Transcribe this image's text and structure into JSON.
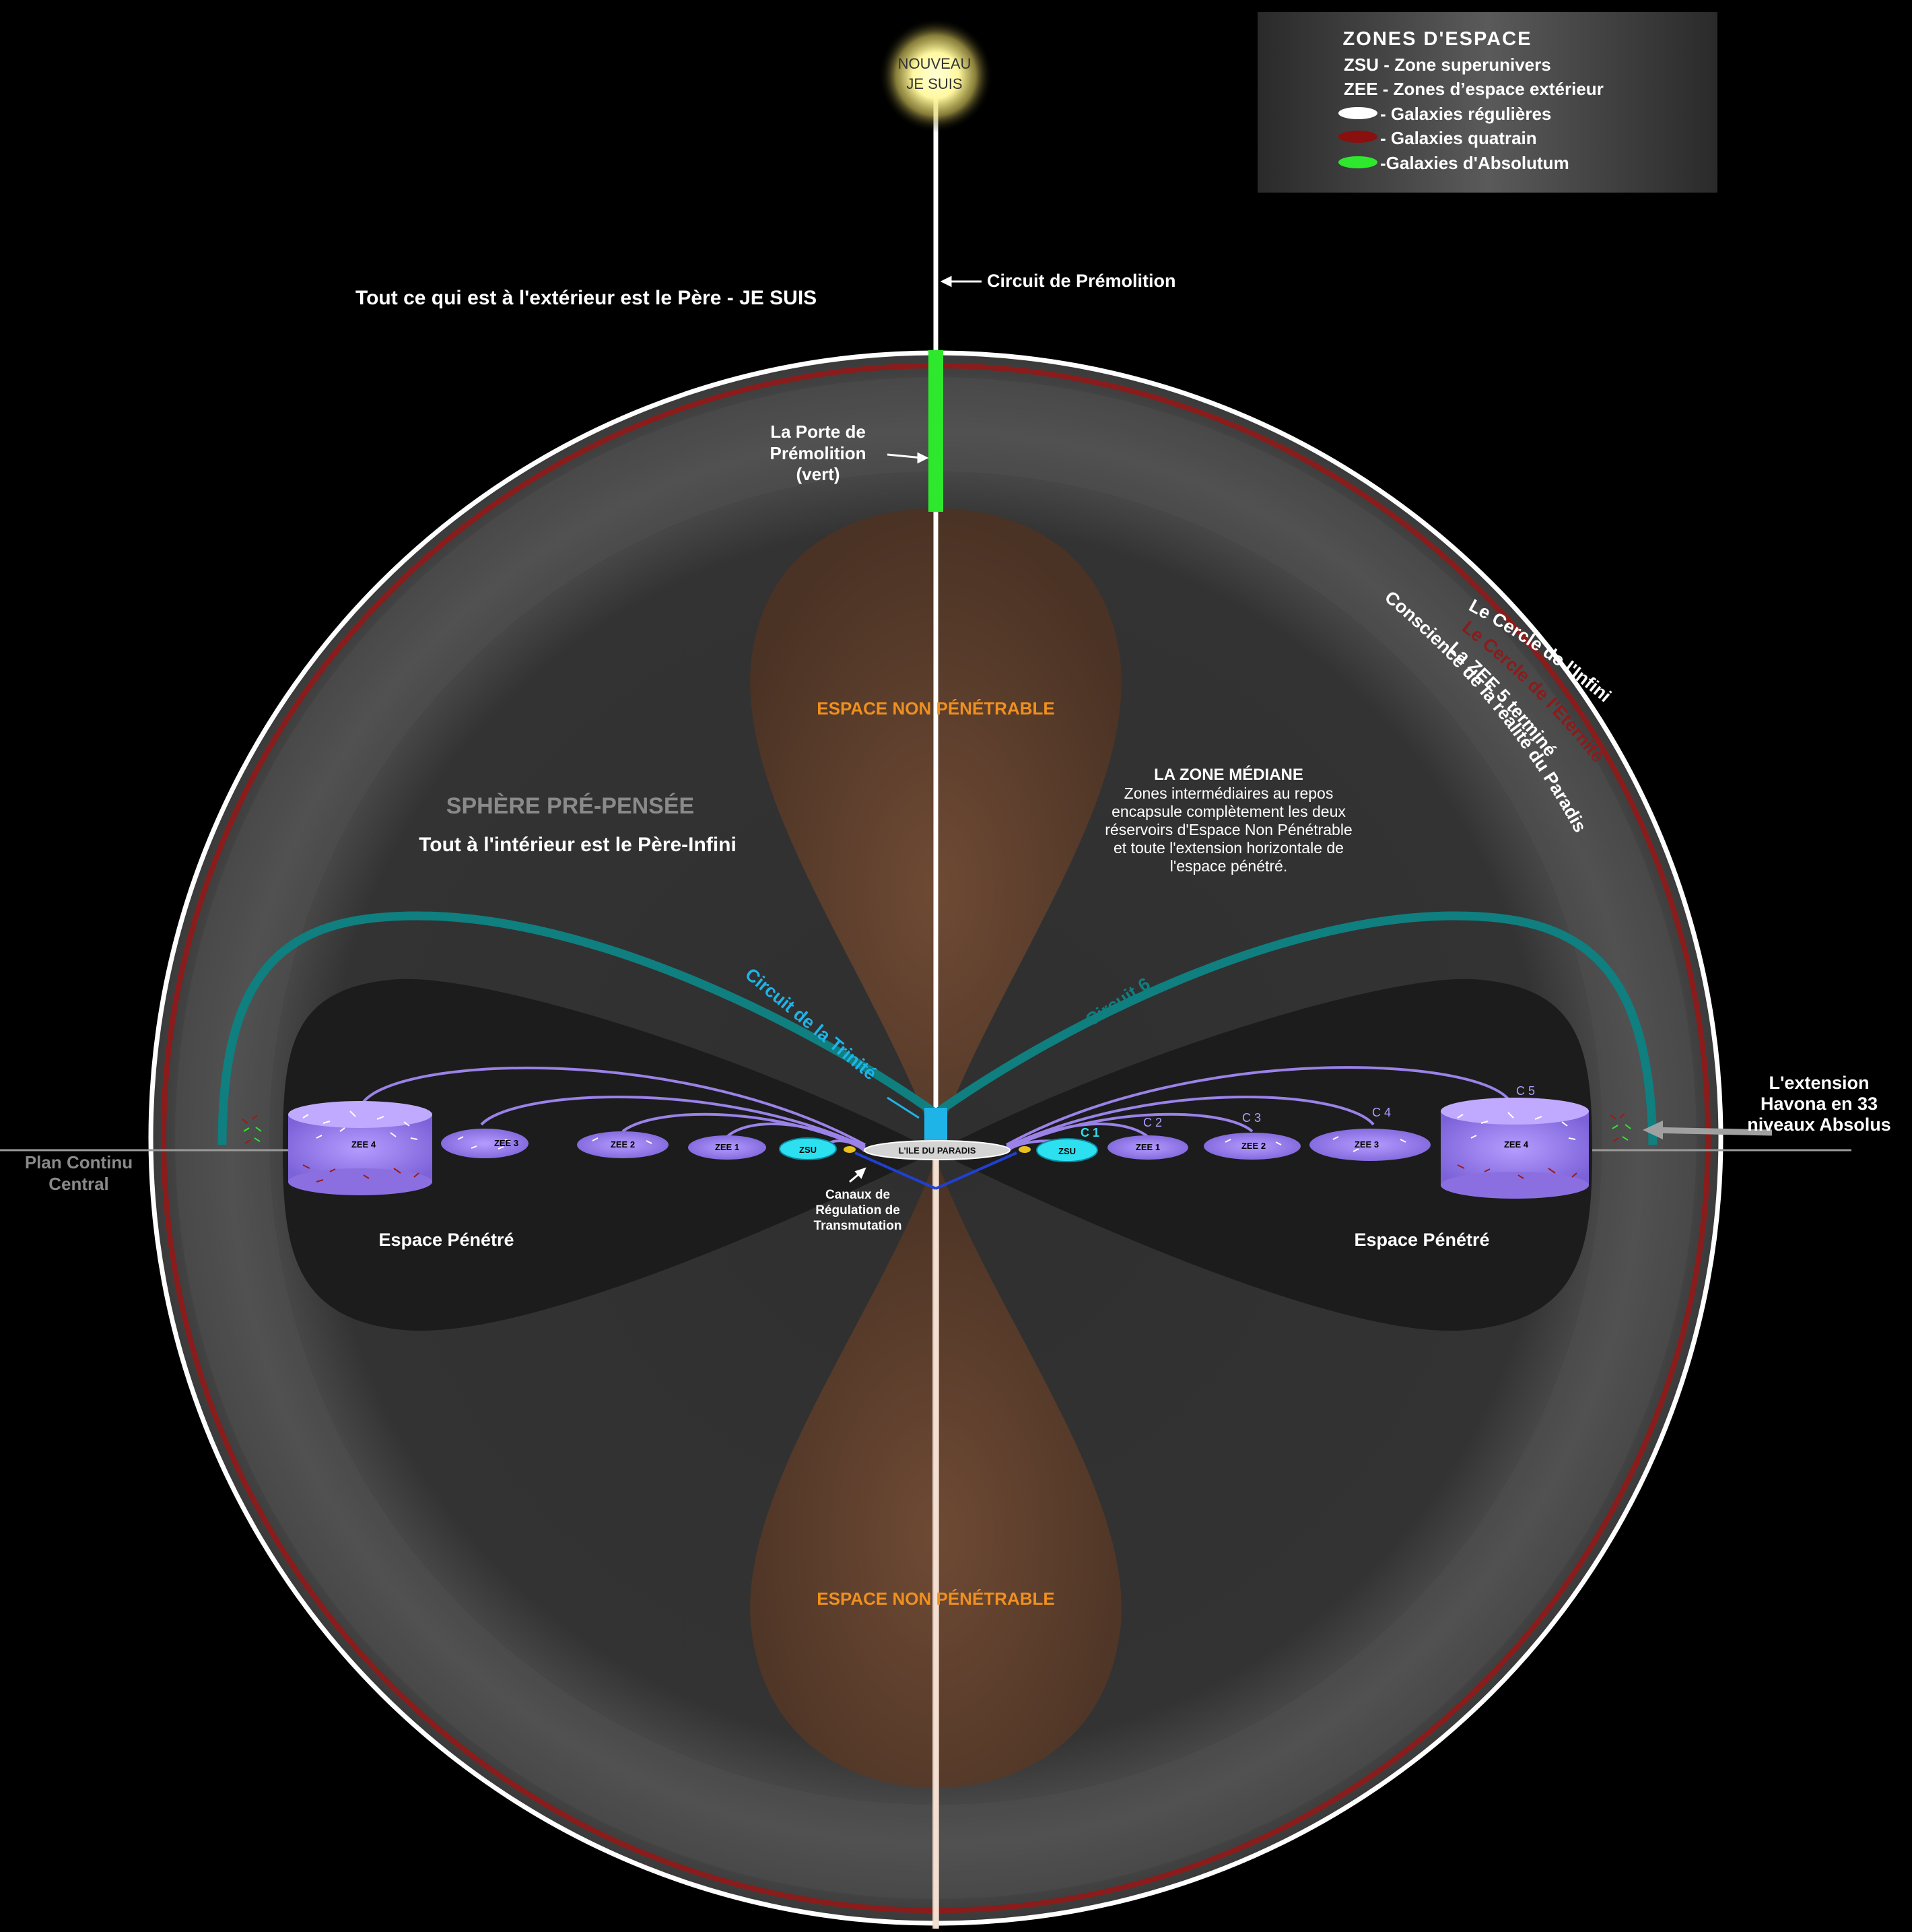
{
  "colors": {
    "background": "#000000",
    "sphere_fill": "#3a3a3a",
    "middle_zone": "#1c1c1c",
    "unpenetrable": "#6b4630",
    "circle_infinity": "#ffffff",
    "circle_eternity": "#8a1c1c",
    "premolition_gate": "#2ee82e",
    "circuit_6": "#0f7f80",
    "trinity_circuit": "#1fb4e8",
    "galaxy_zone": "#9b82e8",
    "zsu": "#2de0f0",
    "orange_text": "#f0901e",
    "transmutation_channel": "#2040d0"
  },
  "legend": {
    "title": "ZONES D'ESPACE",
    "zsu": "ZSU - Zone superunivers",
    "zee": "ZEE - Zones d’espace extérieur",
    "regular": "- Galaxies régulières",
    "quatrain": "- Galaxies quatrain",
    "absolutum": "-Galaxies d'Absolutum"
  },
  "labels": {
    "new_i_am_line1": "NOUVEAU",
    "new_i_am_line2": "JE SUIS",
    "premolition_circuit": "Circuit de Prémolition",
    "outside_father": "Tout ce qui est à l'extérieur est le Père - JE SUIS",
    "gate_line1": "La Porte de",
    "gate_line2": "Prémolition",
    "gate_line3": "(vert)",
    "unpenetrable_top": "ESPACE NON  PÉNÉTRABLE",
    "unpenetrable_bottom": "ESPACE NON  PÉNÉTRABLE",
    "prethought_sphere": "SPHÈRE PRÉ-PENSÉE",
    "inside_father": "Tout à l'intérieur est le Père-Infini",
    "middle_zone_title": "LA ZONE MÉDIANE",
    "middle_zone_l1": "Zones intermédiaires au repos",
    "middle_zone_l2": "encapsule complètement les deux",
    "middle_zone_l3": "réservoirs d'Espace Non  Pénétrable",
    "middle_zone_l4": "et toute l'extension horizontale de",
    "middle_zone_l5": "l'espace pénétré.",
    "circle_infinity": "Le Cercle de l'Infini",
    "circle_eternity": "Le Cercle de l'Eternité",
    "zee5_done": "La ZEE 5 terminé",
    "reality_consciousness": "Conscience de la réalité du Paradis",
    "trinity_circuit": "Circuit de la Trinité",
    "circuit_6": "Circuit 6",
    "havona_l1": "L'extension",
    "havona_l2": "Havona en 33",
    "havona_l3": "niveaux Absolus",
    "central_plane_l1": "Plan Continu",
    "central_plane_l2": "Central",
    "paradise_isle": "L'ILE DU PARADIS",
    "channels_l1": "Canaux de",
    "channels_l2": "Régulation de",
    "channels_l3": "Transmutation",
    "penetrated_left": "Espace Pénétré",
    "penetrated_right": "Espace Pénétré"
  },
  "left_zones": [
    "ZEE 4",
    "ZEE 3",
    "ZEE 2",
    "ZEE 1",
    "ZSU"
  ],
  "right_zones": [
    "ZSU",
    "ZEE 1",
    "ZEE 2",
    "ZEE 3",
    "ZEE 4"
  ],
  "right_circuits": [
    "C 1",
    "C 2",
    "C 3",
    "C 4",
    "C 5"
  ]
}
